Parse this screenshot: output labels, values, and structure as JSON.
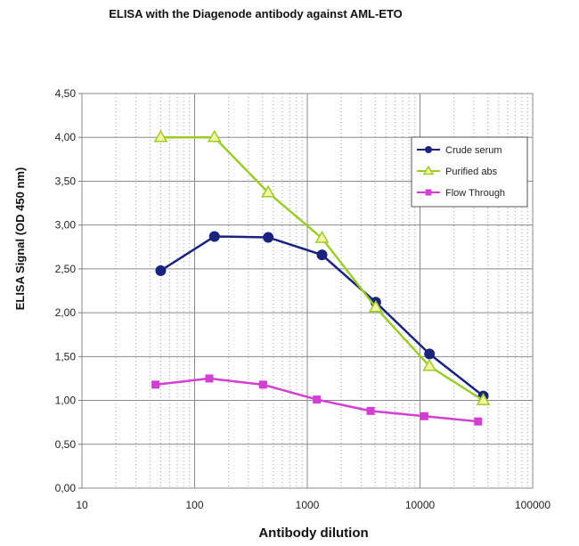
{
  "chart_data": {
    "type": "line",
    "title": "ELISA with the Diagenode antibody against AML-ETO",
    "xlabel": "Antibody dilution",
    "ylabel": "ELISA Signal (OD 450 nm)",
    "x_scale": "log",
    "xlim": [
      10,
      100000
    ],
    "ylim": [
      0,
      4.5
    ],
    "x_ticks": [
      10,
      100,
      1000,
      10000,
      100000
    ],
    "x_tick_labels": [
      "10",
      "100",
      "1000",
      "10000",
      "100000"
    ],
    "y_ticks": [
      0,
      0.5,
      1,
      1.5,
      2,
      2.5,
      3,
      3.5,
      4,
      4.5
    ],
    "y_tick_labels": [
      "0,00",
      "0,50",
      "1,00",
      "1,50",
      "2,00",
      "2,50",
      "3,00",
      "3,50",
      "4,00",
      "4,50"
    ],
    "grid": true,
    "legend_position": "top-right",
    "series": [
      {
        "name": "Crude serum",
        "color": "#1a237e",
        "marker": "circle",
        "x": [
          50,
          150,
          450,
          1350,
          4050,
          12150,
          36450
        ],
        "y": [
          2.48,
          2.87,
          2.86,
          2.66,
          2.12,
          1.53,
          1.05
        ]
      },
      {
        "name": "Purified abs",
        "color": "#9ccc2a",
        "marker_fill": "#f5f5a0",
        "marker": "triangle",
        "x": [
          50,
          150,
          450,
          1350,
          4050,
          12150,
          36450
        ],
        "y": [
          4.0,
          4.0,
          3.37,
          2.85,
          2.06,
          1.39,
          1.0
        ]
      },
      {
        "name": "Flow  Through",
        "color": "#d23fd2",
        "marker": "square",
        "x": [
          45,
          135,
          405,
          1215,
          3645,
          10935,
          32805
        ],
        "y": [
          1.18,
          1.25,
          1.18,
          1.01,
          0.88,
          0.82,
          0.76
        ]
      }
    ]
  }
}
